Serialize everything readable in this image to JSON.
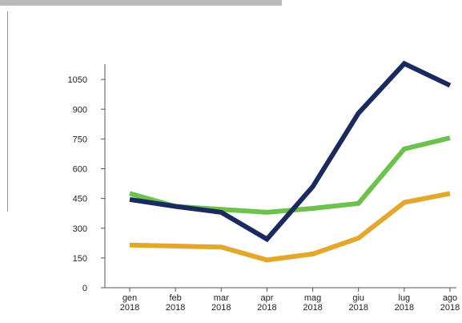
{
  "chart_data": {
    "type": "line",
    "categories": [
      [
        "gen",
        "2018"
      ],
      [
        "feb",
        "2018"
      ],
      [
        "mar",
        "2018"
      ],
      [
        "apr",
        "2018"
      ],
      [
        "mag",
        "2018"
      ],
      [
        "giu",
        "2018"
      ],
      [
        "lug",
        "2018"
      ],
      [
        "ago",
        "2018"
      ]
    ],
    "ylim": [
      0,
      1200
    ],
    "yticks": [
      0,
      150,
      300,
      450,
      600,
      750,
      900,
      1050
    ],
    "grid": false,
    "legend": "none",
    "series": [
      {
        "color": "#1b2a5e",
        "values": [
          445,
          410,
          380,
          245,
          510,
          880,
          1130,
          1020
        ]
      },
      {
        "color": "#6cc24a",
        "values": [
          475,
          410,
          395,
          380,
          400,
          425,
          700,
          755
        ]
      },
      {
        "color": "#e3a82b",
        "values": [
          215,
          210,
          205,
          140,
          170,
          250,
          430,
          475
        ]
      }
    ]
  }
}
